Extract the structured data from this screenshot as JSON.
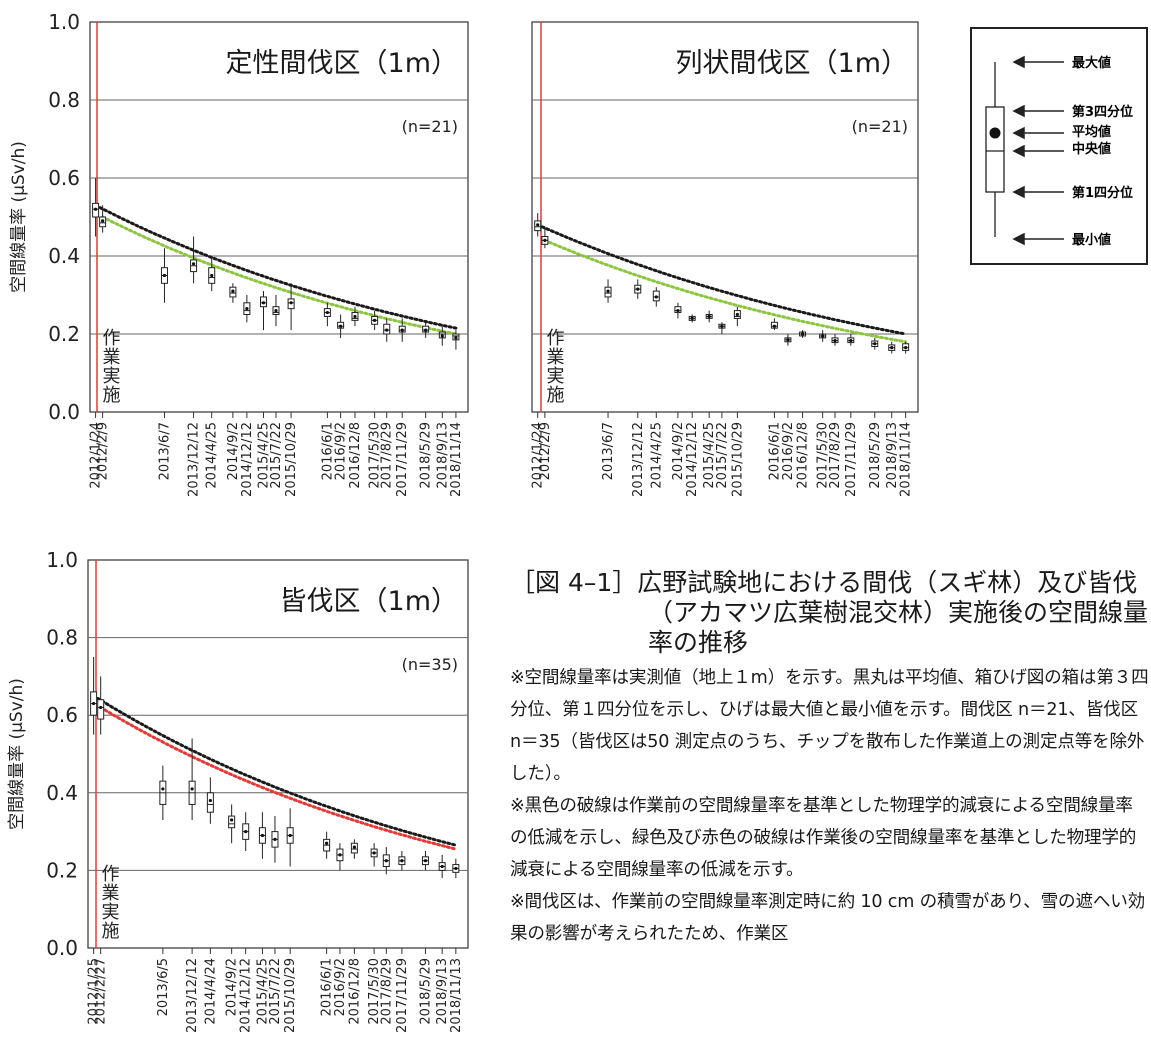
{
  "chart_data": [
    {
      "type": "box",
      "title": "定性間伐区（1m）",
      "n_label": "(n=21)",
      "ylabel": "空間線量率 (μSv/h)",
      "ylim": [
        0,
        1.0
      ],
      "yticks": [
        "0.0",
        "0.2",
        "0.4",
        "0.6",
        "0.8",
        "1.0"
      ],
      "grid": true,
      "work_label": "作業実施",
      "x": [
        "2012/1/24",
        "2012/2/9",
        "2013/6/7",
        "2013/12/12",
        "2014/4/25",
        "2014/9/2",
        "2014/12/12",
        "2015/4/25",
        "2015/7/22",
        "2015/10/29",
        "2016/6/1",
        "2016/9/2",
        "2016/12/8",
        "2017/5/30",
        "2017/8/29",
        "2017/11/29",
        "2018/5/29",
        "2018/9/13",
        "2018/11/14"
      ],
      "box": [
        {
          "min": 0.45,
          "q1": 0.5,
          "median": 0.52,
          "mean": 0.52,
          "q3": 0.535,
          "max": 0.6
        },
        {
          "min": 0.46,
          "q1": 0.475,
          "median": 0.485,
          "mean": 0.49,
          "q3": 0.5,
          "max": 0.53
        },
        {
          "min": 0.28,
          "q1": 0.33,
          "median": 0.35,
          "mean": 0.35,
          "q3": 0.37,
          "max": 0.42
        },
        {
          "min": 0.33,
          "q1": 0.36,
          "median": 0.375,
          "mean": 0.38,
          "q3": 0.39,
          "max": 0.45
        },
        {
          "min": 0.31,
          "q1": 0.33,
          "median": 0.345,
          "mean": 0.35,
          "q3": 0.37,
          "max": 0.4
        },
        {
          "min": 0.28,
          "q1": 0.295,
          "median": 0.305,
          "mean": 0.31,
          "q3": 0.32,
          "max": 0.33
        },
        {
          "min": 0.23,
          "q1": 0.25,
          "median": 0.26,
          "mean": 0.265,
          "q3": 0.28,
          "max": 0.3
        },
        {
          "min": 0.21,
          "q1": 0.27,
          "median": 0.28,
          "mean": 0.28,
          "q3": 0.295,
          "max": 0.31
        },
        {
          "min": 0.22,
          "q1": 0.25,
          "median": 0.255,
          "mean": 0.26,
          "q3": 0.27,
          "max": 0.3
        },
        {
          "min": 0.21,
          "q1": 0.265,
          "median": 0.28,
          "mean": 0.28,
          "q3": 0.29,
          "max": 0.33
        },
        {
          "min": 0.22,
          "q1": 0.245,
          "median": 0.255,
          "mean": 0.255,
          "q3": 0.265,
          "max": 0.28
        },
        {
          "min": 0.19,
          "q1": 0.215,
          "median": 0.22,
          "mean": 0.22,
          "q3": 0.23,
          "max": 0.25
        },
        {
          "min": 0.22,
          "q1": 0.235,
          "median": 0.24,
          "mean": 0.245,
          "q3": 0.255,
          "max": 0.27
        },
        {
          "min": 0.21,
          "q1": 0.225,
          "median": 0.235,
          "mean": 0.235,
          "q3": 0.245,
          "max": 0.26
        },
        {
          "min": 0.18,
          "q1": 0.2,
          "median": 0.21,
          "mean": 0.21,
          "q3": 0.225,
          "max": 0.24
        },
        {
          "min": 0.18,
          "q1": 0.205,
          "median": 0.21,
          "mean": 0.21,
          "q3": 0.22,
          "max": 0.24
        },
        {
          "min": 0.19,
          "q1": 0.205,
          "median": 0.21,
          "mean": 0.21,
          "q3": 0.22,
          "max": 0.23
        },
        {
          "min": 0.17,
          "q1": 0.19,
          "median": 0.2,
          "mean": 0.195,
          "q3": 0.205,
          "max": 0.22
        },
        {
          "min": 0.16,
          "q1": 0.185,
          "median": 0.195,
          "mean": 0.19,
          "q3": 0.2,
          "max": 0.21
        }
      ],
      "decay_pre": {
        "start": 0.53,
        "end": 0.215,
        "color": "#1a1a1a"
      },
      "decay_post": {
        "start": 0.5,
        "end": 0.2,
        "color": "#8cc63f"
      }
    },
    {
      "type": "box",
      "title": "列状間伐区（1m）",
      "n_label": "(n=21)",
      "ylabel": "",
      "ylim": [
        0,
        1.0
      ],
      "yticks": [],
      "grid": true,
      "work_label": "作業実施",
      "x": [
        "2012/1/24",
        "2012/2/9",
        "2013/6/7",
        "2013/12/12",
        "2014/4/25",
        "2014/9/2",
        "2014/12/12",
        "2015/4/25",
        "2015/7/22",
        "2015/10/29",
        "2016/6/1",
        "2016/9/2",
        "2016/12/8",
        "2017/5/30",
        "2017/8/29",
        "2017/11/29",
        "2018/5/29",
        "2018/9/13",
        "2018/11/14"
      ],
      "box": [
        {
          "min": 0.45,
          "q1": 0.465,
          "median": 0.475,
          "mean": 0.48,
          "q3": 0.49,
          "max": 0.51
        },
        {
          "min": 0.42,
          "q1": 0.43,
          "median": 0.44,
          "mean": 0.44,
          "q3": 0.45,
          "max": 0.47
        },
        {
          "min": 0.28,
          "q1": 0.295,
          "median": 0.305,
          "mean": 0.31,
          "q3": 0.32,
          "max": 0.34
        },
        {
          "min": 0.29,
          "q1": 0.305,
          "median": 0.315,
          "mean": 0.315,
          "q3": 0.325,
          "max": 0.34
        },
        {
          "min": 0.27,
          "q1": 0.285,
          "median": 0.295,
          "mean": 0.295,
          "q3": 0.31,
          "max": 0.32
        },
        {
          "min": 0.24,
          "q1": 0.255,
          "median": 0.26,
          "mean": 0.26,
          "q3": 0.27,
          "max": 0.28
        },
        {
          "min": 0.23,
          "q1": 0.235,
          "median": 0.24,
          "mean": 0.24,
          "q3": 0.245,
          "max": 0.25
        },
        {
          "min": 0.23,
          "q1": 0.24,
          "median": 0.245,
          "mean": 0.245,
          "q3": 0.25,
          "max": 0.26
        },
        {
          "min": 0.2,
          "q1": 0.215,
          "median": 0.22,
          "mean": 0.22,
          "q3": 0.225,
          "max": 0.23
        },
        {
          "min": 0.22,
          "q1": 0.24,
          "median": 0.245,
          "mean": 0.25,
          "q3": 0.26,
          "max": 0.27
        },
        {
          "min": 0.21,
          "q1": 0.215,
          "median": 0.22,
          "mean": 0.22,
          "q3": 0.23,
          "max": 0.24
        },
        {
          "min": 0.17,
          "q1": 0.18,
          "median": 0.185,
          "mean": 0.185,
          "q3": 0.19,
          "max": 0.2
        },
        {
          "min": 0.19,
          "q1": 0.195,
          "median": 0.2,
          "mean": 0.2,
          "q3": 0.205,
          "max": 0.21
        },
        {
          "min": 0.18,
          "q1": 0.19,
          "median": 0.195,
          "mean": 0.195,
          "q3": 0.2,
          "max": 0.21
        },
        {
          "min": 0.17,
          "q1": 0.178,
          "median": 0.183,
          "mean": 0.183,
          "q3": 0.19,
          "max": 0.2
        },
        {
          "min": 0.17,
          "q1": 0.178,
          "median": 0.183,
          "mean": 0.183,
          "q3": 0.19,
          "max": 0.2
        },
        {
          "min": 0.16,
          "q1": 0.168,
          "median": 0.175,
          "mean": 0.175,
          "q3": 0.182,
          "max": 0.19
        },
        {
          "min": 0.15,
          "q1": 0.158,
          "median": 0.165,
          "mean": 0.165,
          "q3": 0.172,
          "max": 0.18
        },
        {
          "min": 0.15,
          "q1": 0.158,
          "median": 0.165,
          "mean": 0.165,
          "q3": 0.175,
          "max": 0.18
        }
      ],
      "decay_pre": {
        "start": 0.48,
        "end": 0.2,
        "color": "#1a1a1a"
      },
      "decay_post": {
        "start": 0.44,
        "end": 0.18,
        "color": "#8cc63f"
      }
    },
    {
      "type": "box",
      "title": "皆伐区（1m）",
      "n_label": "(n=35)",
      "ylabel": "空間線量率 (μSv/h)",
      "ylim": [
        0,
        1.0
      ],
      "yticks": [
        "0.0",
        "0.2",
        "0.4",
        "0.6",
        "0.8",
        "1.0"
      ],
      "grid": true,
      "work_label": "作業実施",
      "x": [
        "2012/1/25",
        "2012/2/27",
        "2013/6/5",
        "2013/12/12",
        "2014/4/24",
        "2014/9/2",
        "2014/12/12",
        "2015/4/25",
        "2015/7/22",
        "2015/10/29",
        "2016/6/1",
        "2016/9/2",
        "2016/12/8",
        "2017/5/30",
        "2017/8/29",
        "2017/11/29",
        "2018/5/29",
        "2018/9/13",
        "2018/11/13"
      ],
      "box": [
        {
          "min": 0.55,
          "q1": 0.6,
          "median": 0.63,
          "mean": 0.63,
          "q3": 0.66,
          "max": 0.75
        },
        {
          "min": 0.55,
          "q1": 0.59,
          "median": 0.62,
          "mean": 0.62,
          "q3": 0.64,
          "max": 0.7
        },
        {
          "min": 0.33,
          "q1": 0.37,
          "median": 0.4,
          "mean": 0.41,
          "q3": 0.43,
          "max": 0.47
        },
        {
          "min": 0.33,
          "q1": 0.37,
          "median": 0.4,
          "mean": 0.41,
          "q3": 0.43,
          "max": 0.54
        },
        {
          "min": 0.32,
          "q1": 0.35,
          "median": 0.37,
          "mean": 0.38,
          "q3": 0.4,
          "max": 0.44
        },
        {
          "min": 0.27,
          "q1": 0.31,
          "median": 0.32,
          "mean": 0.33,
          "q3": 0.34,
          "max": 0.37
        },
        {
          "min": 0.25,
          "q1": 0.28,
          "median": 0.3,
          "mean": 0.3,
          "q3": 0.32,
          "max": 0.35
        },
        {
          "min": 0.23,
          "q1": 0.27,
          "median": 0.29,
          "mean": 0.29,
          "q3": 0.31,
          "max": 0.35
        },
        {
          "min": 0.22,
          "q1": 0.26,
          "median": 0.28,
          "mean": 0.28,
          "q3": 0.3,
          "max": 0.34
        },
        {
          "min": 0.21,
          "q1": 0.27,
          "median": 0.29,
          "mean": 0.29,
          "q3": 0.31,
          "max": 0.36
        },
        {
          "min": 0.23,
          "q1": 0.25,
          "median": 0.265,
          "mean": 0.27,
          "q3": 0.28,
          "max": 0.3
        },
        {
          "min": 0.2,
          "q1": 0.225,
          "median": 0.24,
          "mean": 0.24,
          "q3": 0.255,
          "max": 0.27
        },
        {
          "min": 0.23,
          "q1": 0.245,
          "median": 0.255,
          "mean": 0.26,
          "q3": 0.27,
          "max": 0.28
        },
        {
          "min": 0.21,
          "q1": 0.235,
          "median": 0.245,
          "mean": 0.245,
          "q3": 0.255,
          "max": 0.27
        },
        {
          "min": 0.19,
          "q1": 0.21,
          "median": 0.225,
          "mean": 0.225,
          "q3": 0.24,
          "max": 0.26
        },
        {
          "min": 0.2,
          "q1": 0.215,
          "median": 0.225,
          "mean": 0.225,
          "q3": 0.235,
          "max": 0.25
        },
        {
          "min": 0.2,
          "q1": 0.215,
          "median": 0.225,
          "mean": 0.225,
          "q3": 0.235,
          "max": 0.25
        },
        {
          "min": 0.18,
          "q1": 0.2,
          "median": 0.21,
          "mean": 0.21,
          "q3": 0.22,
          "max": 0.24
        },
        {
          "min": 0.18,
          "q1": 0.195,
          "median": 0.205,
          "mean": 0.205,
          "q3": 0.215,
          "max": 0.23
        }
      ],
      "decay_pre": {
        "start": 0.65,
        "end": 0.265,
        "color": "#1a1a1a"
      },
      "decay_post": {
        "start": 0.62,
        "end": 0.255,
        "color": "#e53935"
      }
    }
  ],
  "legend": {
    "max": "最大値",
    "q3": "第3四分位",
    "mean": "平均値",
    "median": "中央値",
    "q1": "第1四分位",
    "min": "最小値"
  },
  "caption": {
    "title": "［図 4–1］広野試験地における間伐（スギ林）及び皆伐（アカマツ広葉樹混交林）実施後の空間線量率の推移",
    "note1": "※空間線量率は実測値（地上１m）を示す。黒丸は平均値、箱ひげ図の箱は第３四分位、第１四分位を示し、ひげは最大値と最小値を示す。間伐区 n＝21、皆伐区 n＝35（皆伐区は50 測定点のうち、チップを散布した作業道上の測定点等を除外した）。",
    "note2": "※黒色の破線は作業前の空間線量率を基準とした物理学的減衰による空間線量率の低減を示し、緑色及び赤色の破線は作業後の空間線量率を基準とした物理学的減衰による空間線量率の低減を示す。",
    "note3": "※間伐区は、作業前の空間線量率測定時に約 10 cm の積雪があり、雪の遮へい効果の影響が考えられたため、作業区"
  }
}
